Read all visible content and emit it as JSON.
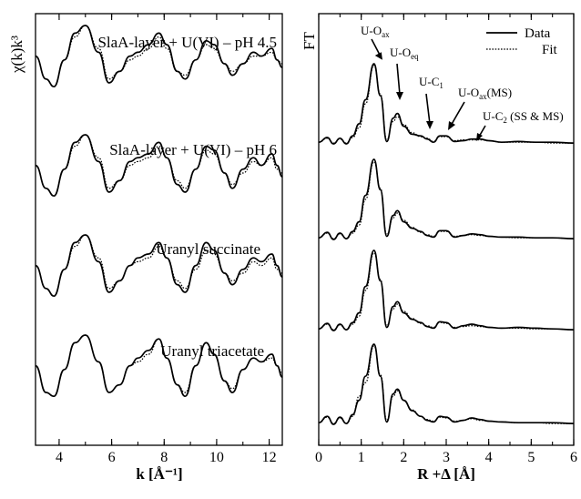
{
  "chart_data": [
    {
      "type": "line",
      "panel": "left",
      "ylabel": "χ(k)k³",
      "xlabel": "k [Å⁻¹]",
      "xlim": [
        3.1,
        12.5
      ],
      "xticks": [
        "4",
        "6",
        "8",
        "10",
        "12"
      ],
      "grid": false,
      "spectra": [
        {
          "label": "SlaA-layer + U(VI) – pH 4.5",
          "x": [
            3.1,
            3.5,
            3.8,
            4.2,
            4.6,
            5.0,
            5.5,
            5.9,
            6.3,
            6.7,
            7.0,
            7.4,
            7.8,
            8.1,
            8.5,
            8.8,
            9.2,
            9.6,
            9.9,
            10.3,
            10.6,
            11.0,
            11.4,
            11.7,
            12.1,
            12.3,
            12.5
          ],
          "data": [
            0.2,
            -0.4,
            -0.6,
            0.1,
            0.8,
            1.0,
            0.3,
            -0.5,
            -0.2,
            0.2,
            0.3,
            0.5,
            0.8,
            0.5,
            -0.2,
            -0.4,
            0.1,
            0.6,
            0.5,
            0.0,
            -0.3,
            0.0,
            0.3,
            0.2,
            0.4,
            0.1,
            -0.1
          ],
          "fit": [
            0.2,
            -0.4,
            -0.6,
            0.1,
            0.7,
            1.0,
            0.4,
            -0.4,
            -0.2,
            0.1,
            0.2,
            0.4,
            0.7,
            0.4,
            -0.2,
            -0.3,
            0.1,
            0.5,
            0.4,
            0.0,
            -0.2,
            0.0,
            0.2,
            0.2,
            0.3,
            0.1,
            0.0
          ]
        },
        {
          "label": "SlaA-layer + U(VI) – pH 6",
          "x": [
            3.1,
            3.5,
            3.8,
            4.2,
            4.6,
            5.0,
            5.5,
            5.9,
            6.3,
            6.7,
            7.0,
            7.4,
            7.8,
            8.1,
            8.5,
            8.8,
            9.2,
            9.6,
            9.9,
            10.3,
            10.6,
            11.0,
            11.4,
            11.7,
            12.1,
            12.3,
            12.5
          ],
          "data": [
            0.2,
            -0.4,
            -0.6,
            0.1,
            0.8,
            1.0,
            0.3,
            -0.5,
            -0.2,
            0.3,
            0.4,
            0.5,
            0.8,
            0.4,
            -0.3,
            -0.5,
            0.1,
            0.7,
            0.6,
            0.0,
            -0.4,
            0.1,
            0.4,
            0.2,
            0.5,
            0.2,
            -0.1
          ],
          "fit": [
            0.2,
            -0.4,
            -0.6,
            0.1,
            0.7,
            1.0,
            0.4,
            -0.4,
            -0.2,
            0.2,
            0.3,
            0.4,
            0.7,
            0.4,
            -0.2,
            -0.4,
            0.1,
            0.6,
            0.5,
            0.0,
            -0.3,
            0.0,
            0.3,
            0.2,
            0.4,
            0.1,
            0.0
          ]
        },
        {
          "label": "Uranyl succinate",
          "x": [
            3.1,
            3.5,
            3.8,
            4.2,
            4.6,
            5.0,
            5.5,
            5.9,
            6.3,
            6.7,
            7.0,
            7.4,
            7.8,
            8.1,
            8.5,
            8.8,
            9.2,
            9.6,
            9.9,
            10.3,
            10.6,
            11.0,
            11.4,
            11.7,
            12.1,
            12.3,
            12.5
          ],
          "data": [
            0.2,
            -0.4,
            -0.6,
            0.1,
            0.8,
            1.0,
            0.3,
            -0.5,
            -0.2,
            0.2,
            0.4,
            0.5,
            0.8,
            0.4,
            -0.3,
            -0.5,
            0.2,
            0.8,
            0.6,
            0.0,
            -0.3,
            0.1,
            0.4,
            0.3,
            0.5,
            0.2,
            -0.1
          ],
          "fit": [
            0.2,
            -0.4,
            -0.6,
            0.1,
            0.7,
            1.0,
            0.4,
            -0.4,
            -0.2,
            0.2,
            0.3,
            0.4,
            0.7,
            0.4,
            -0.2,
            -0.4,
            0.1,
            0.6,
            0.5,
            0.0,
            -0.2,
            0.0,
            0.3,
            0.2,
            0.4,
            0.1,
            0.0
          ]
        },
        {
          "label": "Uranyl triacetate",
          "x": [
            3.1,
            3.5,
            3.8,
            4.2,
            4.6,
            5.0,
            5.5,
            5.9,
            6.3,
            6.7,
            7.0,
            7.4,
            7.8,
            8.1,
            8.5,
            8.8,
            9.2,
            9.6,
            9.9,
            10.3,
            10.6,
            11.0,
            11.4,
            11.7,
            12.1,
            12.3,
            12.5
          ],
          "data": [
            0.2,
            -0.5,
            -0.6,
            0.1,
            0.8,
            1.0,
            0.3,
            -0.5,
            -0.3,
            0.2,
            0.4,
            0.6,
            0.9,
            0.4,
            -0.3,
            -0.6,
            0.2,
            0.8,
            0.5,
            -0.2,
            -0.5,
            0.1,
            0.4,
            0.3,
            0.5,
            0.2,
            -0.1
          ],
          "fit": [
            0.2,
            -0.5,
            -0.6,
            0.1,
            0.8,
            1.0,
            0.3,
            -0.5,
            -0.3,
            0.2,
            0.3,
            0.5,
            0.9,
            0.4,
            -0.3,
            -0.5,
            0.2,
            0.8,
            0.5,
            -0.2,
            -0.4,
            0.1,
            0.4,
            0.3,
            0.4,
            0.2,
            0.0
          ]
        }
      ]
    },
    {
      "type": "line",
      "panel": "right",
      "ylabel": "FT",
      "xlabel": "R +Δ [Å]",
      "xlim": [
        0,
        6
      ],
      "xticks": [
        "0",
        "1",
        "2",
        "3",
        "4",
        "5",
        "6"
      ],
      "grid": false,
      "legend": {
        "placement": "top-right",
        "entries": [
          "Data",
          "Fit"
        ]
      },
      "annotations": [
        {
          "main": "U-O",
          "sub": "ax",
          "suffix": "",
          "x": 1.3
        },
        {
          "main": "U-O",
          "sub": "eq",
          "suffix": "",
          "x": 1.85
        },
        {
          "main": "U-C",
          "sub": "1",
          "suffix": "",
          "x": 2.55
        },
        {
          "main": "U-O",
          "sub": "ax",
          "suffix": "(MS)",
          "x": 2.95
        },
        {
          "main": "U-C",
          "sub": "2",
          "suffix": " (SS & MS)",
          "x": 3.45
        }
      ],
      "spectra": [
        {
          "x": [
            0,
            0.2,
            0.35,
            0.5,
            0.65,
            0.8,
            0.95,
            1.1,
            1.3,
            1.45,
            1.6,
            1.75,
            1.85,
            2.0,
            2.2,
            2.4,
            2.55,
            2.7,
            2.85,
            3.0,
            3.2,
            3.4,
            3.6,
            3.8,
            4.0,
            4.3,
            4.7,
            5.1,
            5.5,
            6.0
          ],
          "data": [
            0.02,
            0.08,
            0.0,
            0.07,
            0.0,
            0.1,
            0.25,
            0.55,
            1.0,
            0.6,
            0.03,
            0.32,
            0.38,
            0.22,
            0.12,
            0.1,
            0.06,
            0.02,
            0.1,
            0.1,
            0.03,
            0.04,
            0.06,
            0.06,
            0.04,
            0.02,
            0.03,
            0.02,
            0.02,
            0.01
          ],
          "fit": [
            0.02,
            0.07,
            0.01,
            0.06,
            0.01,
            0.08,
            0.2,
            0.5,
            0.98,
            0.62,
            0.05,
            0.28,
            0.34,
            0.24,
            0.14,
            0.09,
            0.07,
            0.03,
            0.09,
            0.09,
            0.04,
            0.05,
            0.05,
            0.05,
            0.04,
            0.02,
            0.02,
            0.02,
            0.01,
            0.01
          ]
        },
        {
          "x": [
            0,
            0.2,
            0.35,
            0.5,
            0.65,
            0.8,
            0.95,
            1.1,
            1.3,
            1.45,
            1.6,
            1.75,
            1.85,
            2.0,
            2.2,
            2.4,
            2.55,
            2.7,
            2.85,
            3.0,
            3.2,
            3.4,
            3.6,
            3.8,
            4.0,
            4.3,
            4.7,
            5.1,
            5.5,
            6.0
          ],
          "data": [
            0.02,
            0.09,
            0.0,
            0.08,
            0.01,
            0.1,
            0.22,
            0.55,
            1.0,
            0.62,
            0.04,
            0.3,
            0.36,
            0.22,
            0.14,
            0.1,
            0.05,
            0.03,
            0.11,
            0.11,
            0.03,
            0.05,
            0.07,
            0.06,
            0.04,
            0.03,
            0.03,
            0.02,
            0.02,
            0.01
          ],
          "fit": [
            0.02,
            0.08,
            0.01,
            0.07,
            0.01,
            0.08,
            0.18,
            0.5,
            0.97,
            0.64,
            0.06,
            0.27,
            0.33,
            0.24,
            0.15,
            0.09,
            0.06,
            0.04,
            0.1,
            0.1,
            0.04,
            0.05,
            0.06,
            0.05,
            0.04,
            0.03,
            0.02,
            0.02,
            0.02,
            0.01
          ]
        },
        {
          "x": [
            0,
            0.2,
            0.35,
            0.5,
            0.65,
            0.8,
            0.95,
            1.1,
            1.3,
            1.45,
            1.6,
            1.75,
            1.85,
            2.0,
            2.2,
            2.4,
            2.55,
            2.7,
            2.85,
            3.0,
            3.2,
            3.4,
            3.6,
            3.8,
            4.0,
            4.3,
            4.7,
            5.1,
            5.5,
            6.0
          ],
          "data": [
            0.02,
            0.09,
            0.0,
            0.08,
            0.01,
            0.1,
            0.22,
            0.55,
            1.0,
            0.62,
            0.04,
            0.3,
            0.36,
            0.22,
            0.14,
            0.1,
            0.05,
            0.03,
            0.11,
            0.1,
            0.03,
            0.06,
            0.08,
            0.06,
            0.04,
            0.03,
            0.04,
            0.03,
            0.02,
            0.01
          ],
          "fit": [
            0.02,
            0.08,
            0.01,
            0.07,
            0.01,
            0.08,
            0.18,
            0.5,
            0.97,
            0.64,
            0.06,
            0.27,
            0.33,
            0.24,
            0.15,
            0.09,
            0.06,
            0.04,
            0.1,
            0.09,
            0.04,
            0.05,
            0.06,
            0.05,
            0.04,
            0.03,
            0.03,
            0.02,
            0.02,
            0.01
          ]
        },
        {
          "x": [
            0,
            0.2,
            0.35,
            0.5,
            0.65,
            0.8,
            0.95,
            1.1,
            1.3,
            1.45,
            1.6,
            1.75,
            1.85,
            2.0,
            2.2,
            2.4,
            2.55,
            2.7,
            2.85,
            3.0,
            3.2,
            3.4,
            3.6,
            3.8,
            4.0,
            4.3,
            4.7,
            5.1,
            5.5,
            6.0
          ],
          "data": [
            0.02,
            0.1,
            0.0,
            0.09,
            0.01,
            0.12,
            0.3,
            0.6,
            1.0,
            0.6,
            0.03,
            0.38,
            0.44,
            0.3,
            0.17,
            0.1,
            0.05,
            0.03,
            0.1,
            0.09,
            0.03,
            0.05,
            0.08,
            0.06,
            0.04,
            0.03,
            0.02,
            0.02,
            0.02,
            0.01
          ],
          "fit": [
            0.02,
            0.09,
            0.01,
            0.08,
            0.01,
            0.1,
            0.35,
            0.52,
            0.98,
            0.62,
            0.05,
            0.35,
            0.42,
            0.3,
            0.18,
            0.1,
            0.06,
            0.04,
            0.09,
            0.08,
            0.04,
            0.05,
            0.07,
            0.05,
            0.04,
            0.03,
            0.02,
            0.02,
            0.01,
            0.01
          ]
        }
      ]
    }
  ]
}
